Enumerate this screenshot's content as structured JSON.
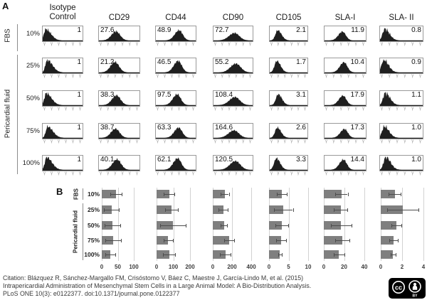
{
  "figure": {
    "panel_a_label": "A",
    "panel_b_label": "B"
  },
  "groups": {
    "fbs": "FBS",
    "pericardial": "Pericardial fluid"
  },
  "colors": {
    "bar": "#7f7f7f",
    "histogram": "#1f1f1f",
    "grid": "#d2d2d2",
    "error": "#4d4d4d",
    "border": "#9a9a9a",
    "badge_bg": "#000000"
  },
  "chart_data": [
    {
      "type": "table",
      "title": "Flow cytometry histograms (mean fluorescence intensity ratio)",
      "columns": [
        "Isotype\nControl",
        "CD29",
        "CD44",
        "CD90",
        "CD105",
        "SLA-I",
        "SLA- II"
      ],
      "value_align": [
        "right",
        "left",
        "left",
        "left",
        "right",
        "right",
        "right"
      ],
      "row_groups": [
        {
          "label": "FBS",
          "rows": [
            "10%"
          ]
        },
        {
          "label": "Pericardial fluid",
          "rows": [
            "25%",
            "50%",
            "75%",
            "100%"
          ]
        }
      ],
      "rows": [
        {
          "label": "10%",
          "values": [
            "1",
            "27.6",
            "48.9",
            "72.7",
            "2.1",
            "11.9",
            "0.8"
          ]
        },
        {
          "label": "25%",
          "values": [
            "1",
            "21.2",
            "46.5",
            "55.2",
            "1.7",
            "10.4",
            "0.9"
          ]
        },
        {
          "label": "50%",
          "values": [
            "1",
            "38.3",
            "97.5",
            "108.4",
            "3.1",
            "17.9",
            "1.1"
          ]
        },
        {
          "label": "75%",
          "values": [
            "1",
            "38.7",
            "63.3",
            "164.6",
            "2.6",
            "17.3",
            "1.0"
          ]
        },
        {
          "label": "100%",
          "values": [
            "1",
            "40.1",
            "62.1",
            "120.5",
            "3.3",
            "14.4",
            "1.0"
          ]
        }
      ],
      "shape_hints": [
        {
          "peak": 0.1,
          "sl": 0.045,
          "sr": 0.13,
          "amp": 0.88,
          "jag": 0.22
        },
        {
          "peak": 0.42,
          "sl": 0.11,
          "sr": 0.1,
          "amp": 0.72,
          "jag": 0.18
        },
        {
          "peak": 0.56,
          "sl": 0.11,
          "sr": 0.09,
          "amp": 0.8,
          "jag": 0.15
        },
        {
          "peak": 0.55,
          "sl": 0.14,
          "sr": 0.12,
          "amp": 0.6,
          "jag": 0.15
        },
        {
          "peak": 0.2,
          "sl": 0.06,
          "sr": 0.1,
          "amp": 0.8,
          "jag": 0.18
        },
        {
          "peak": 0.46,
          "sl": 0.1,
          "sr": 0.08,
          "amp": 0.7,
          "jag": 0.15
        },
        {
          "peak": 0.11,
          "sl": 0.05,
          "sr": 0.11,
          "amp": 0.9,
          "jag": 0.3
        }
      ]
    },
    {
      "type": "bar",
      "orientation": "horizontal",
      "title": "CD29",
      "categories": [
        "10%",
        "25%",
        "50%",
        "75%",
        "100%"
      ],
      "values": [
        44,
        30,
        33,
        35,
        27
      ],
      "errors": [
        18,
        23,
        24,
        25,
        16
      ],
      "xlim": [
        0,
        100
      ],
      "ticks": [
        0,
        50,
        100
      ]
    },
    {
      "type": "bar",
      "orientation": "horizontal",
      "title": "CD44",
      "categories": [
        "10%",
        "25%",
        "50%",
        "75%",
        "100%"
      ],
      "values": [
        75,
        90,
        98,
        70,
        75
      ],
      "errors": [
        33,
        38,
        78,
        29,
        35
      ],
      "xlim": [
        0,
        200
      ],
      "ticks": [
        0,
        100,
        200
      ]
    },
    {
      "type": "bar",
      "orientation": "horizontal",
      "title": "CD90",
      "categories": [
        "10%",
        "25%",
        "50%",
        "75%",
        "100%"
      ],
      "values": [
        125,
        108,
        115,
        170,
        130
      ],
      "errors": [
        42,
        46,
        35,
        53,
        57
      ],
      "xlim": [
        0,
        400
      ],
      "ticks": [
        0,
        200,
        400
      ]
    },
    {
      "type": "bar",
      "orientation": "horizontal",
      "title": "CD105",
      "categories": [
        "10%",
        "25%",
        "50%",
        "75%",
        "100%"
      ],
      "values": [
        3.3,
        3.7,
        3.3,
        3.1,
        2.8
      ],
      "errors": [
        1.3,
        2.4,
        1.6,
        1.2,
        0.5
      ],
      "xlim": [
        0,
        10
      ],
      "ticks": [
        0,
        5,
        10
      ]
    },
    {
      "type": "bar",
      "orientation": "horizontal",
      "title": "SLA-I",
      "categories": [
        "10%",
        "25%",
        "50%",
        "75%",
        "100%"
      ],
      "values": [
        17.5,
        16.5,
        17,
        18,
        15
      ],
      "errors": [
        6,
        6.5,
        10,
        7,
        5
      ],
      "xlim": [
        0,
        40
      ],
      "ticks": [
        0,
        20,
        40
      ]
    },
    {
      "type": "bar",
      "orientation": "horizontal",
      "title": "SLA- II",
      "categories": [
        "10%",
        "25%",
        "50%",
        "75%",
        "100%"
      ],
      "values": [
        1.3,
        2.05,
        1.45,
        1.2,
        1.15
      ],
      "errors": [
        0.55,
        1.45,
        0.45,
        0.4,
        0.25
      ],
      "xlim": [
        0,
        4
      ],
      "ticks": [
        0,
        2,
        4
      ]
    }
  ],
  "citation": {
    "line1": "Citation: Blázquez R, Sánchez-Margallo FM, Crisóstomo V, Báez C, Maestre J, García-Lindo M, et al. (2015)",
    "line2": "Intrapericardial Administration of Mesenchymal Stem Cells in a Large Animal Model: A Bio-Distribution Analysis.",
    "line3": "PLoS ONE 10(3): e0122377. doi:10.1371/journal.pone.0122377"
  },
  "cc_badge": {
    "cc_text": "cc",
    "by_text": "BY"
  }
}
